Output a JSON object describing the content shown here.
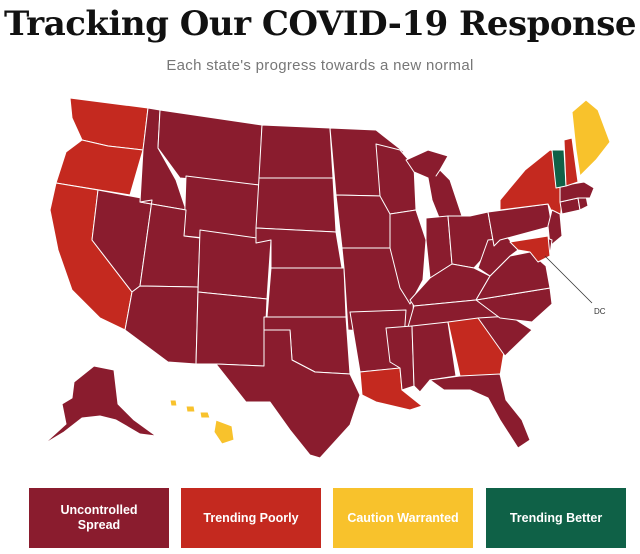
{
  "title": "Tracking Our COVID-19 Response",
  "subtitle": "Each state's progress towards a new normal",
  "dc_label": "DC",
  "colors": {
    "uncontrolled": "#8a1c2e",
    "trending_poorly": "#c4291f",
    "caution": "#f8c22c",
    "trending_better": "#0f6147"
  },
  "legend": [
    {
      "label": "Uncontrolled Spread",
      "color": "#8a1c2e"
    },
    {
      "label": "Trending Poorly",
      "color": "#c4291f"
    },
    {
      "label": "Caution Warranted",
      "color": "#f8c22c"
    },
    {
      "label": "Trending Better",
      "color": "#0f6147"
    }
  ],
  "state_status": {
    "uncontrolled": [
      "Montana",
      "Idaho",
      "Wyoming",
      "Nevada",
      "Utah",
      "Colorado",
      "Arizona",
      "New Mexico",
      "North Dakota",
      "South Dakota",
      "Nebraska",
      "Kansas",
      "Oklahoma",
      "Texas",
      "Minnesota",
      "Iowa",
      "Missouri",
      "Arkansas",
      "Wisconsin",
      "Illinois",
      "Michigan",
      "Indiana",
      "Ohio",
      "Kentucky",
      "Tennessee",
      "Mississippi",
      "Alabama",
      "Florida",
      "South Carolina",
      "North Carolina",
      "Virginia",
      "West Virginia",
      "Pennsylvania",
      "New Jersey",
      "Connecticut",
      "Rhode Island",
      "Massachusetts",
      "Delaware",
      "Alaska"
    ],
    "trending_poorly": [
      "Washington",
      "Oregon",
      "California",
      "Louisiana",
      "Georgia",
      "New York",
      "Maryland",
      "New Hampshire"
    ],
    "caution": [
      "Maine",
      "Hawaii"
    ],
    "trending_better": [
      "Vermont"
    ]
  }
}
